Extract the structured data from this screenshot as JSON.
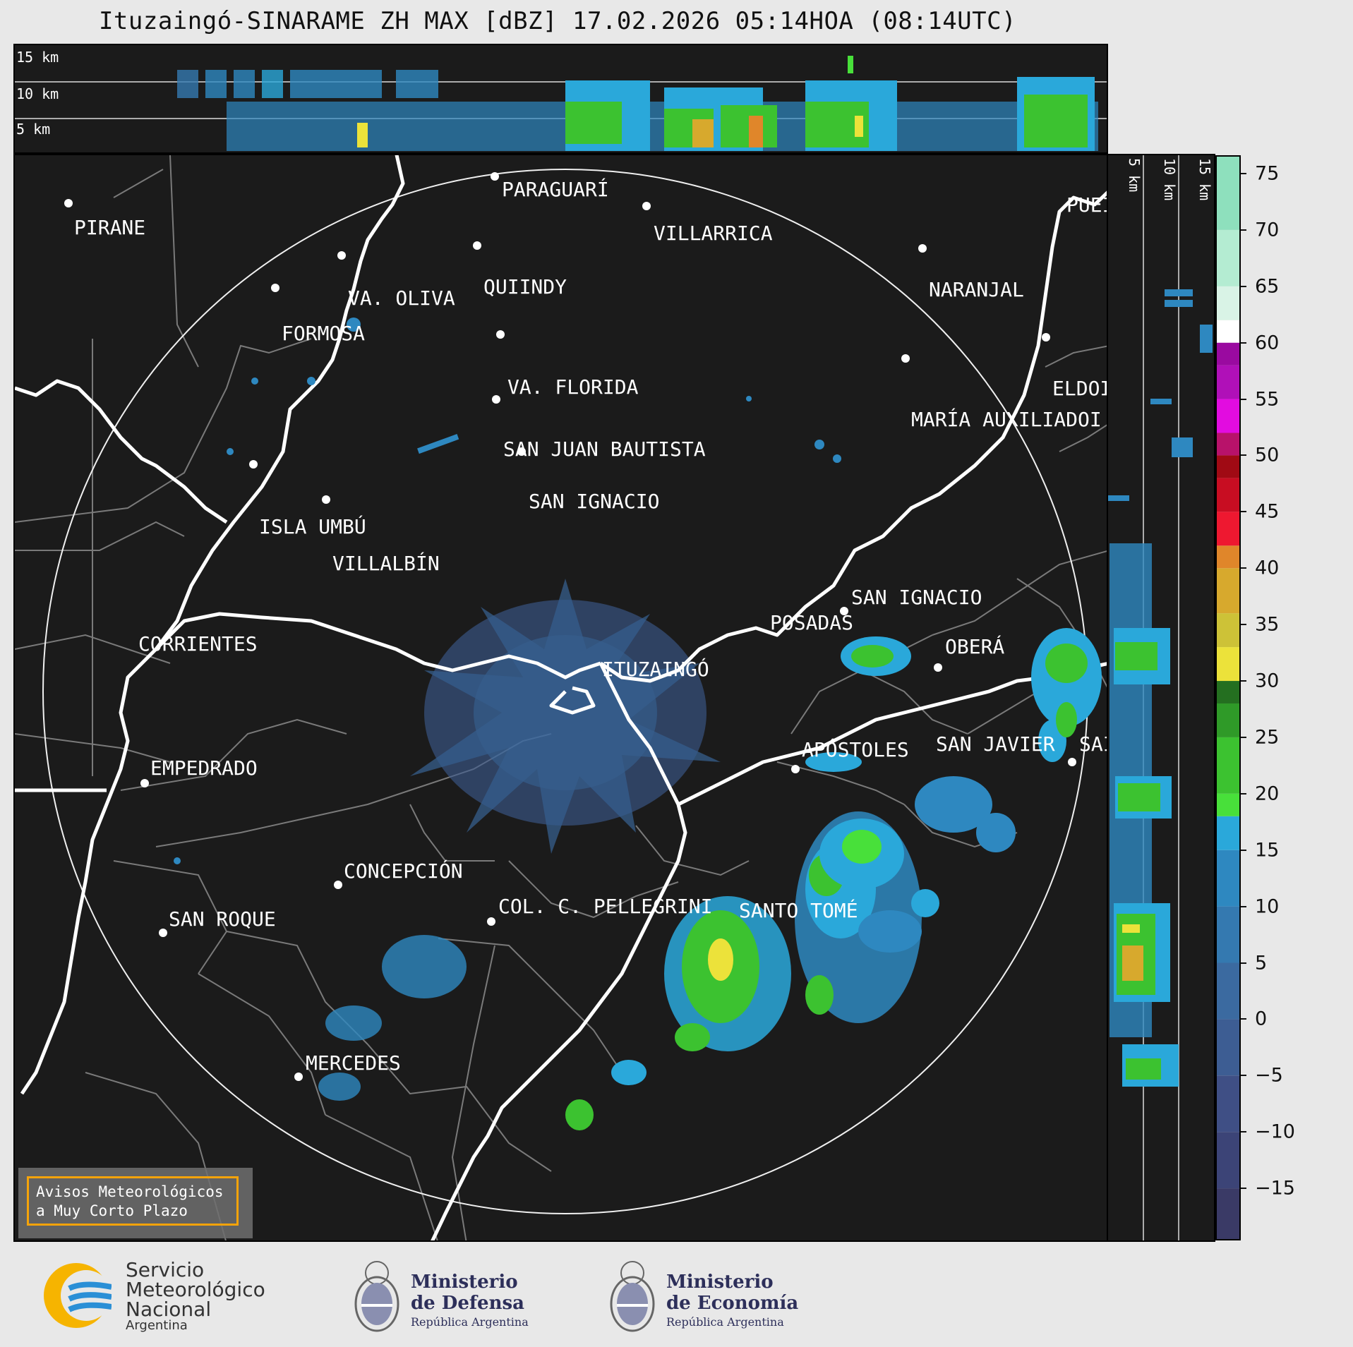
{
  "title": "Ituzaingó-SINARAME ZH MAX [dBZ] 17.02.2026 05:14HOA (08:14UTC)",
  "height_labels": {
    "h15": "15 km",
    "h10": "10 km",
    "h5": "5 km"
  },
  "cities": [
    {
      "name": "PARAGUARÍ"
    },
    {
      "name": "VILLARRICA"
    },
    {
      "name": "PIRANE"
    },
    {
      "name": "QUIINDY"
    },
    {
      "name": "VA. OLIVA"
    },
    {
      "name": "NARANJAL"
    },
    {
      "name": "FORMOSA"
    },
    {
      "name": "PUEI"
    },
    {
      "name": "VA. FLORIDA"
    },
    {
      "name": "ELDOI"
    },
    {
      "name": "MARÍA AUXILIADOI"
    },
    {
      "name": "SAN JUAN BAUTISTA"
    },
    {
      "name": "SAN IGNACIO"
    },
    {
      "name": "ISLA UMBÚ"
    },
    {
      "name": "VILLALBÍN"
    },
    {
      "name": "SAN IGNACIO"
    },
    {
      "name": "POSADAS"
    },
    {
      "name": "CORRIENTES"
    },
    {
      "name": "ITUZAINGÓ"
    },
    {
      "name": "OBERÁ"
    },
    {
      "name": "APÓSTOLES"
    },
    {
      "name": "SAN JAVIER"
    },
    {
      "name": "SAI"
    },
    {
      "name": "EMPEDRADO"
    },
    {
      "name": "CONCEPCIÓN"
    },
    {
      "name": "COL. C. PELLEGRINI"
    },
    {
      "name": "SANTO TOMÉ"
    },
    {
      "name": "SAN ROQUE"
    },
    {
      "name": "MERCEDES"
    }
  ],
  "colorbar": {
    "ticks": [
      "75",
      "70",
      "65",
      "60",
      "55",
      "50",
      "45",
      "40",
      "35",
      "30",
      "25",
      "20",
      "15",
      "10",
      "5",
      "0",
      "−5",
      "−10",
      "−15"
    ],
    "range": [
      -19.5,
      76.5
    ],
    "bands": [
      {
        "from": -19.5,
        "to": -15,
        "color": "#3a3a66"
      },
      {
        "from": -15,
        "to": -10,
        "color": "#3c4477"
      },
      {
        "from": -10,
        "to": -5,
        "color": "#3f4f85"
      },
      {
        "from": -5,
        "to": 0,
        "color": "#3d5d93"
      },
      {
        "from": 0,
        "to": 5,
        "color": "#3b6aa0"
      },
      {
        "from": 5,
        "to": 10,
        "color": "#3479b0"
      },
      {
        "from": 10,
        "to": 15,
        "color": "#2e88c0"
      },
      {
        "from": 15,
        "to": 18,
        "color": "#2aa8da"
      },
      {
        "from": 18,
        "to": 20,
        "color": "#48e03a"
      },
      {
        "from": 20,
        "to": 25,
        "color": "#3cc230"
      },
      {
        "from": 25,
        "to": 28,
        "color": "#2f9a28"
      },
      {
        "from": 28,
        "to": 30,
        "color": "#246f20"
      },
      {
        "from": 30,
        "to": 33,
        "color": "#ece23a"
      },
      {
        "from": 33,
        "to": 36,
        "color": "#cdc237"
      },
      {
        "from": 36,
        "to": 40,
        "color": "#d7a92d"
      },
      {
        "from": 40,
        "to": 42,
        "color": "#e0862a"
      },
      {
        "from": 42,
        "to": 45,
        "color": "#ee1830"
      },
      {
        "from": 45,
        "to": 48,
        "color": "#c80d22"
      },
      {
        "from": 48,
        "to": 50,
        "color": "#a00a14"
      },
      {
        "from": 50,
        "to": 52,
        "color": "#b8126a"
      },
      {
        "from": 52,
        "to": 55,
        "color": "#e20ce0"
      },
      {
        "from": 55,
        "to": 58,
        "color": "#b010b8"
      },
      {
        "from": 58,
        "to": 60,
        "color": "#9a0aa0"
      },
      {
        "from": 60,
        "to": 62,
        "color": "#ffffff"
      },
      {
        "from": 62,
        "to": 65,
        "color": "#d9f3e6"
      },
      {
        "from": 65,
        "to": 70,
        "color": "#b4ecd2"
      },
      {
        "from": 70,
        "to": 76.5,
        "color": "#8ee0bd"
      }
    ]
  },
  "warning_box": {
    "line1": "Avisos Meteorológicos",
    "line2": "a Muy Corto Plazo"
  },
  "logos": {
    "smn": {
      "line1": "Servicio",
      "line2": "Meteorológico",
      "line3": "Nacional",
      "line4": "Argentina"
    },
    "defensa": {
      "line1": "Ministerio",
      "line2": "de Defensa",
      "line3": "República Argentina"
    },
    "economia": {
      "line1": "Ministerio",
      "line2": "de Economía",
      "line3": "República Argentina"
    }
  },
  "colors": {
    "accent_orange": "#f5a30a",
    "smn_blue": "#2a8fd6",
    "smn_yellow": "#f6b400"
  }
}
